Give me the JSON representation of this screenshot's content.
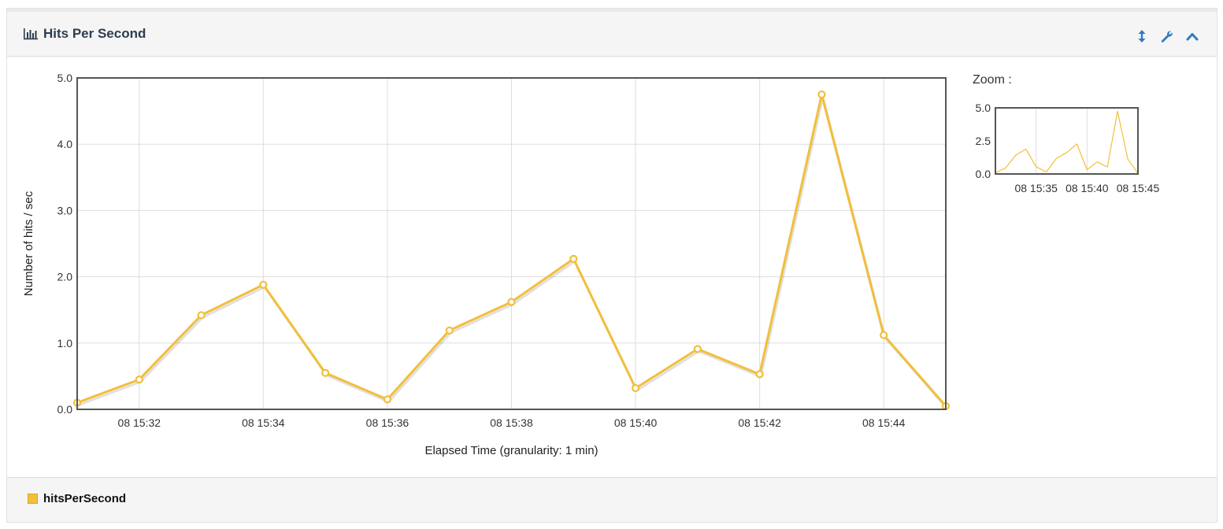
{
  "panel": {
    "title": "Hits Per Second",
    "title_icon": "bar-chart-icon",
    "tools": [
      "resize-vertical-icon",
      "wrench-icon",
      "chevron-up-icon"
    ]
  },
  "zoom": {
    "label": "Zoom :",
    "y_ticks": [
      "0.0",
      "2.5",
      "5.0"
    ],
    "x_ticks": [
      "08 15:35",
      "08 15:40",
      "08 15:45"
    ]
  },
  "legend": {
    "items": [
      {
        "label": "hitsPerSecond",
        "color": "#f2bf3a"
      }
    ]
  },
  "colors": {
    "series": "#f2bf3a",
    "grid": "#dddddd",
    "frame": "#555555"
  },
  "chart_data": {
    "type": "line",
    "title": "",
    "xlabel": "Elapsed Time (granularity: 1 min)",
    "ylabel": "Number of hits / sec",
    "x": [
      "08 15:31",
      "08 15:32",
      "08 15:33",
      "08 15:34",
      "08 15:35",
      "08 15:36",
      "08 15:37",
      "08 15:38",
      "08 15:39",
      "08 15:40",
      "08 15:41",
      "08 15:42",
      "08 15:43",
      "08 15:44",
      "08 15:45"
    ],
    "x_tick_labels": [
      "08 15:32",
      "08 15:34",
      "08 15:36",
      "08 15:38",
      "08 15:40",
      "08 15:42",
      "08 15:44"
    ],
    "y_tick_labels": [
      "0.0",
      "1.0",
      "2.0",
      "3.0",
      "4.0",
      "5.0"
    ],
    "ylim": [
      0,
      5
    ],
    "grid": true,
    "series": [
      {
        "name": "hitsPerSecond",
        "values": [
          0.1,
          0.45,
          1.42,
          1.88,
          0.55,
          0.15,
          1.19,
          1.62,
          2.27,
          0.32,
          0.91,
          0.53,
          4.75,
          1.12,
          0.05
        ]
      }
    ]
  }
}
